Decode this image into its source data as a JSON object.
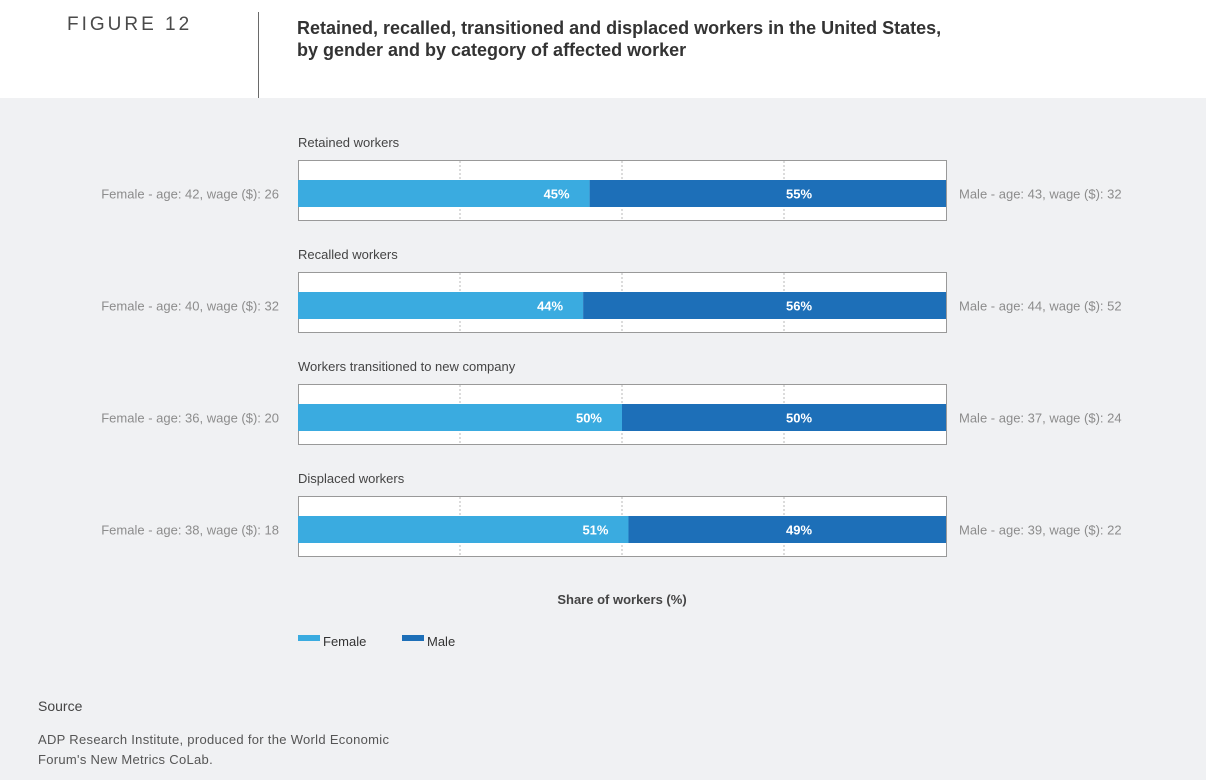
{
  "figure": {
    "label": "FIGURE 12",
    "title_line1": "Retained, recalled, transitioned and displaced workers in the United States,",
    "title_line2": "by gender and by category of affected worker"
  },
  "colors": {
    "female": "#3aabe0",
    "male": "#1d6fb8",
    "panel": "#f0f1f3",
    "gridline": "#b9b9b9",
    "side_text": "#8c8c8c"
  },
  "chart_data": {
    "type": "bar",
    "orientation": "horizontal",
    "stacked": true,
    "title": "Retained, recalled, transitioned and displaced workers in the United States, by gender and by category of affected worker",
    "xlabel": "Share of workers (%)",
    "xlim": [
      0,
      100
    ],
    "grid": true,
    "categories": [
      "Retained workers",
      "Recalled workers",
      "Workers transitioned to new company",
      "Displaced workers"
    ],
    "series": [
      {
        "name": "Female",
        "values": [
          45,
          44,
          50,
          51
        ],
        "labels": [
          "45%",
          "44%",
          "50%",
          "51%"
        ]
      },
      {
        "name": "Male",
        "values": [
          55,
          56,
          50,
          49
        ],
        "labels": [
          "55%",
          "56%",
          "50%",
          "49%"
        ]
      }
    ],
    "female_side_labels": [
      "Female - age: 42, wage ($): 26",
      "Female - age: 40, wage ($): 32",
      "Female - age: 36, wage ($): 20",
      "Female - age: 38, wage ($): 18"
    ],
    "male_side_labels": [
      "Male - age: 43, wage ($): 32",
      "Male - age: 44, wage ($): 52",
      "Male - age: 37, wage ($): 24",
      "Male - age: 39, wage ($): 22"
    ],
    "legend": [
      "Female",
      "Male"
    ],
    "legend_position": "bottom-center"
  },
  "source": {
    "heading": "Source",
    "line1": "ADP Research Institute, produced for the World Economic",
    "line2": "Forum's New Metrics CoLab."
  }
}
